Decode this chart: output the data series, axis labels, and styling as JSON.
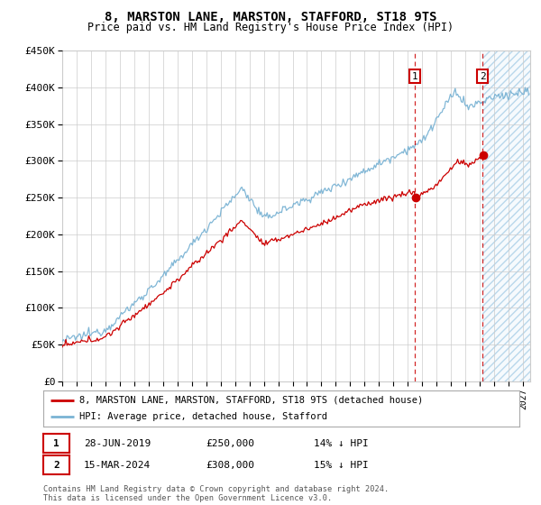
{
  "title": "8, MARSTON LANE, MARSTON, STAFFORD, ST18 9TS",
  "subtitle": "Price paid vs. HM Land Registry's House Price Index (HPI)",
  "hpi_label": "HPI: Average price, detached house, Stafford",
  "property_label": "8, MARSTON LANE, MARSTON, STAFFORD, ST18 9TS (detached house)",
  "footnote": "Contains HM Land Registry data © Crown copyright and database right 2024.\nThis data is licensed under the Open Government Licence v3.0.",
  "annotation1": {
    "num": "1",
    "date": "28-JUN-2019",
    "price": "£250,000",
    "hpi": "14% ↓ HPI"
  },
  "annotation2": {
    "num": "2",
    "date": "15-MAR-2024",
    "price": "£308,000",
    "hpi": "15% ↓ HPI"
  },
  "ylim": [
    0,
    450000
  ],
  "yticks": [
    0,
    50000,
    100000,
    150000,
    200000,
    250000,
    300000,
    350000,
    400000,
    450000
  ],
  "hpi_color": "#7ab3d4",
  "property_color": "#cc0000",
  "vline1_x": 2019.5,
  "vline2_x": 2024.2,
  "point1_prop_y": 250000,
  "point2_prop_y": 308000,
  "shade_start": 2024.2,
  "shade_end": 2027.5,
  "xmin": 1995,
  "xmax": 2027.5,
  "background_color": "#ffffff",
  "grid_color": "#cccccc"
}
